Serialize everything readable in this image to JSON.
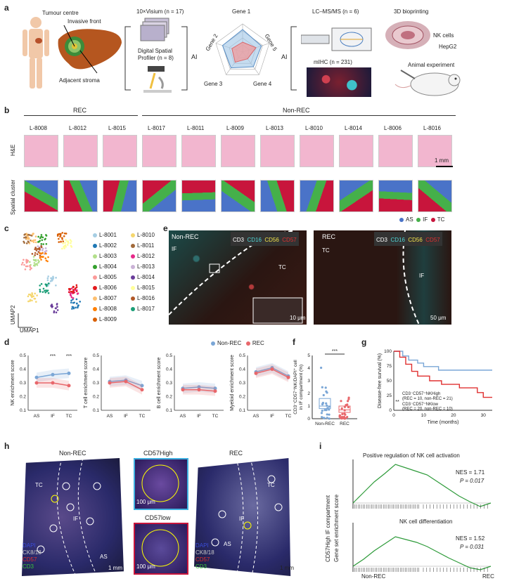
{
  "panel_labels": [
    "a",
    "b",
    "c",
    "d",
    "e",
    "f",
    "g",
    "h",
    "i"
  ],
  "panel_a": {
    "tumour_centre": "Tumour centre",
    "invasive_front": "Invasive front",
    "adjacent_stroma": "Adjacent stroma",
    "visium": "10×Visium (n = 17)",
    "dsp_line1": "Digital Spatial",
    "dsp_line2": "Profiler (n = 8)",
    "ai": "AI",
    "genes": [
      "Gene 1",
      "Gene 2",
      "Gene 3",
      "Gene 4",
      "Gene 5"
    ],
    "lcms": "LC–MS/MS (n = 6)",
    "mihc": "mIHC (n = 231)",
    "bioprinting": "3D bioprinting",
    "nk_cells": "NK cells",
    "hepg2": "HepG2",
    "animal": "Animal experiment"
  },
  "panel_b": {
    "rec": "REC",
    "nonrec": "Non-REC",
    "samples": [
      "L-8008",
      "L-8012",
      "L-8015",
      "L-8017",
      "L-8011",
      "L-8009",
      "L-8013",
      "L-8010",
      "L-8014",
      "L-8006",
      "L-8016"
    ],
    "row1": "H&E",
    "row2": "Spatial cluster",
    "scale": "1 mm",
    "legend": [
      {
        "label": "AS",
        "color": "#4a73c8"
      },
      {
        "label": "IF",
        "color": "#45b04a"
      },
      {
        "label": "TC",
        "color": "#c8153c"
      }
    ]
  },
  "panel_c": {
    "xlabel": "UMAP1",
    "ylabel": "UMAP2",
    "legend": [
      {
        "label": "L-8001",
        "color": "#a6cee3"
      },
      {
        "label": "L-8010",
        "color": "#f5d76e"
      },
      {
        "label": "L-8002",
        "color": "#1f78b4"
      },
      {
        "label": "L-8011",
        "color": "#a16a3a"
      },
      {
        "label": "L-8003",
        "color": "#b2df8a"
      },
      {
        "label": "L-8012",
        "color": "#e7298a"
      },
      {
        "label": "L-8004",
        "color": "#33a02c"
      },
      {
        "label": "L-8013",
        "color": "#cab2d6"
      },
      {
        "label": "L-8005",
        "color": "#fb9a99"
      },
      {
        "label": "L-8014",
        "color": "#6a3d9a"
      },
      {
        "label": "L-8006",
        "color": "#e31a1c"
      },
      {
        "label": "L-8015",
        "color": "#ffff99"
      },
      {
        "label": "L-8007",
        "color": "#fdbf6f"
      },
      {
        "label": "L-8016",
        "color": "#b15928"
      },
      {
        "label": "L-8008",
        "color": "#ff7f00"
      },
      {
        "label": "L-8017",
        "color": "#1b9e77"
      },
      {
        "label": "L-8009",
        "color": "#d95f02"
      }
    ]
  },
  "panel_e": {
    "left_title": "Non-REC",
    "right_title": "REC",
    "markers": [
      {
        "label": "CD3",
        "color": "#ffffff"
      },
      {
        "label": "CD16",
        "color": "#4fd6d6"
      },
      {
        "label": "CD56",
        "color": "#f2e24a"
      },
      {
        "label": "CD57",
        "color": "#e03030"
      }
    ],
    "if": "IF",
    "tc": "TC",
    "scale_inset": "10 μm",
    "scale_main": "50 μm"
  },
  "panel_d": {
    "legend": [
      {
        "label": "Non-REC",
        "color": "#7aa6d6"
      },
      {
        "label": "REC",
        "color": "#e8676b"
      }
    ],
    "xcats": [
      "AS",
      "IF",
      "TC"
    ],
    "yticks": [
      "0.1",
      "0.2",
      "0.3",
      "0.4",
      "0.5"
    ],
    "sig": "***",
    "subplots": [
      {
        "ylabel": "NK enrichment score",
        "nonrec": [
          0.34,
          0.36,
          0.37
        ],
        "rec": [
          0.3,
          0.3,
          0.28
        ]
      },
      {
        "ylabel": "T cell enrichment score",
        "nonrec": [
          0.31,
          0.32,
          0.28
        ],
        "rec": [
          0.3,
          0.31,
          0.25
        ]
      },
      {
        "ylabel": "B cell enrichment score",
        "nonrec": [
          0.26,
          0.27,
          0.26
        ],
        "rec": [
          0.25,
          0.25,
          0.24
        ]
      },
      {
        "ylabel": "Myeloid enrichment score",
        "nonrec": [
          0.38,
          0.41,
          0.35
        ],
        "rec": [
          0.37,
          0.4,
          0.34
        ]
      }
    ]
  },
  "panel_f": {
    "ylabel_line1": "CD3⁻CD57⁺NK/DAPI⁺ cell",
    "ylabel_line2": "in IF compartment (%)",
    "yticks": [
      "0",
      "1",
      "2",
      "3",
      "4",
      "5"
    ],
    "cats": [
      "Non-REC",
      "REC"
    ],
    "sig": "***"
  },
  "panel_g": {
    "ylabel": "Disease-free survival (%)",
    "xlabel": "Time (months)",
    "yticks": [
      "0",
      "25",
      "50",
      "75",
      "100"
    ],
    "xticks": [
      "0",
      "10",
      "20",
      "30"
    ],
    "legend1": "CD3⁻CD57⁺NKHigh",
    "legend1b": "(REC = 10, non-REC = 21)",
    "legend2": "CD3⁻CD57⁺NKlow",
    "legend2b": "(REC = 20, non-REC = 10)",
    "sig": "**"
  },
  "panel_h": {
    "left_title": "Non-REC",
    "right_title": "REC",
    "mid_top": "CD57High",
    "mid_bottom": "CD57low",
    "tc": "TC",
    "if": "IF",
    "as": "AS",
    "scale_mm": "1 mm",
    "scale_um": "100 μm",
    "channels": [
      {
        "label": "DAPI",
        "color": "#3a4cd8"
      },
      {
        "label": "CK8/18",
        "color": "#c9c9c9"
      },
      {
        "label": "CD57",
        "color": "#e03030"
      },
      {
        "label": "CD3",
        "color": "#3ac23a"
      }
    ]
  },
  "panel_i": {
    "title1": "Positive regulation of NK cell activation",
    "nes1": "NES = 1.71",
    "p1": "P = 0.017",
    "title2": "NK cell differentiation",
    "nes2": "NES = 1.52",
    "p2": "P = 0.031",
    "ylabel_line1": "CD57High IF compartment",
    "ylabel_line2": "Gene set enrichment score",
    "x_left": "Non-REC",
    "x_right": "REC"
  }
}
